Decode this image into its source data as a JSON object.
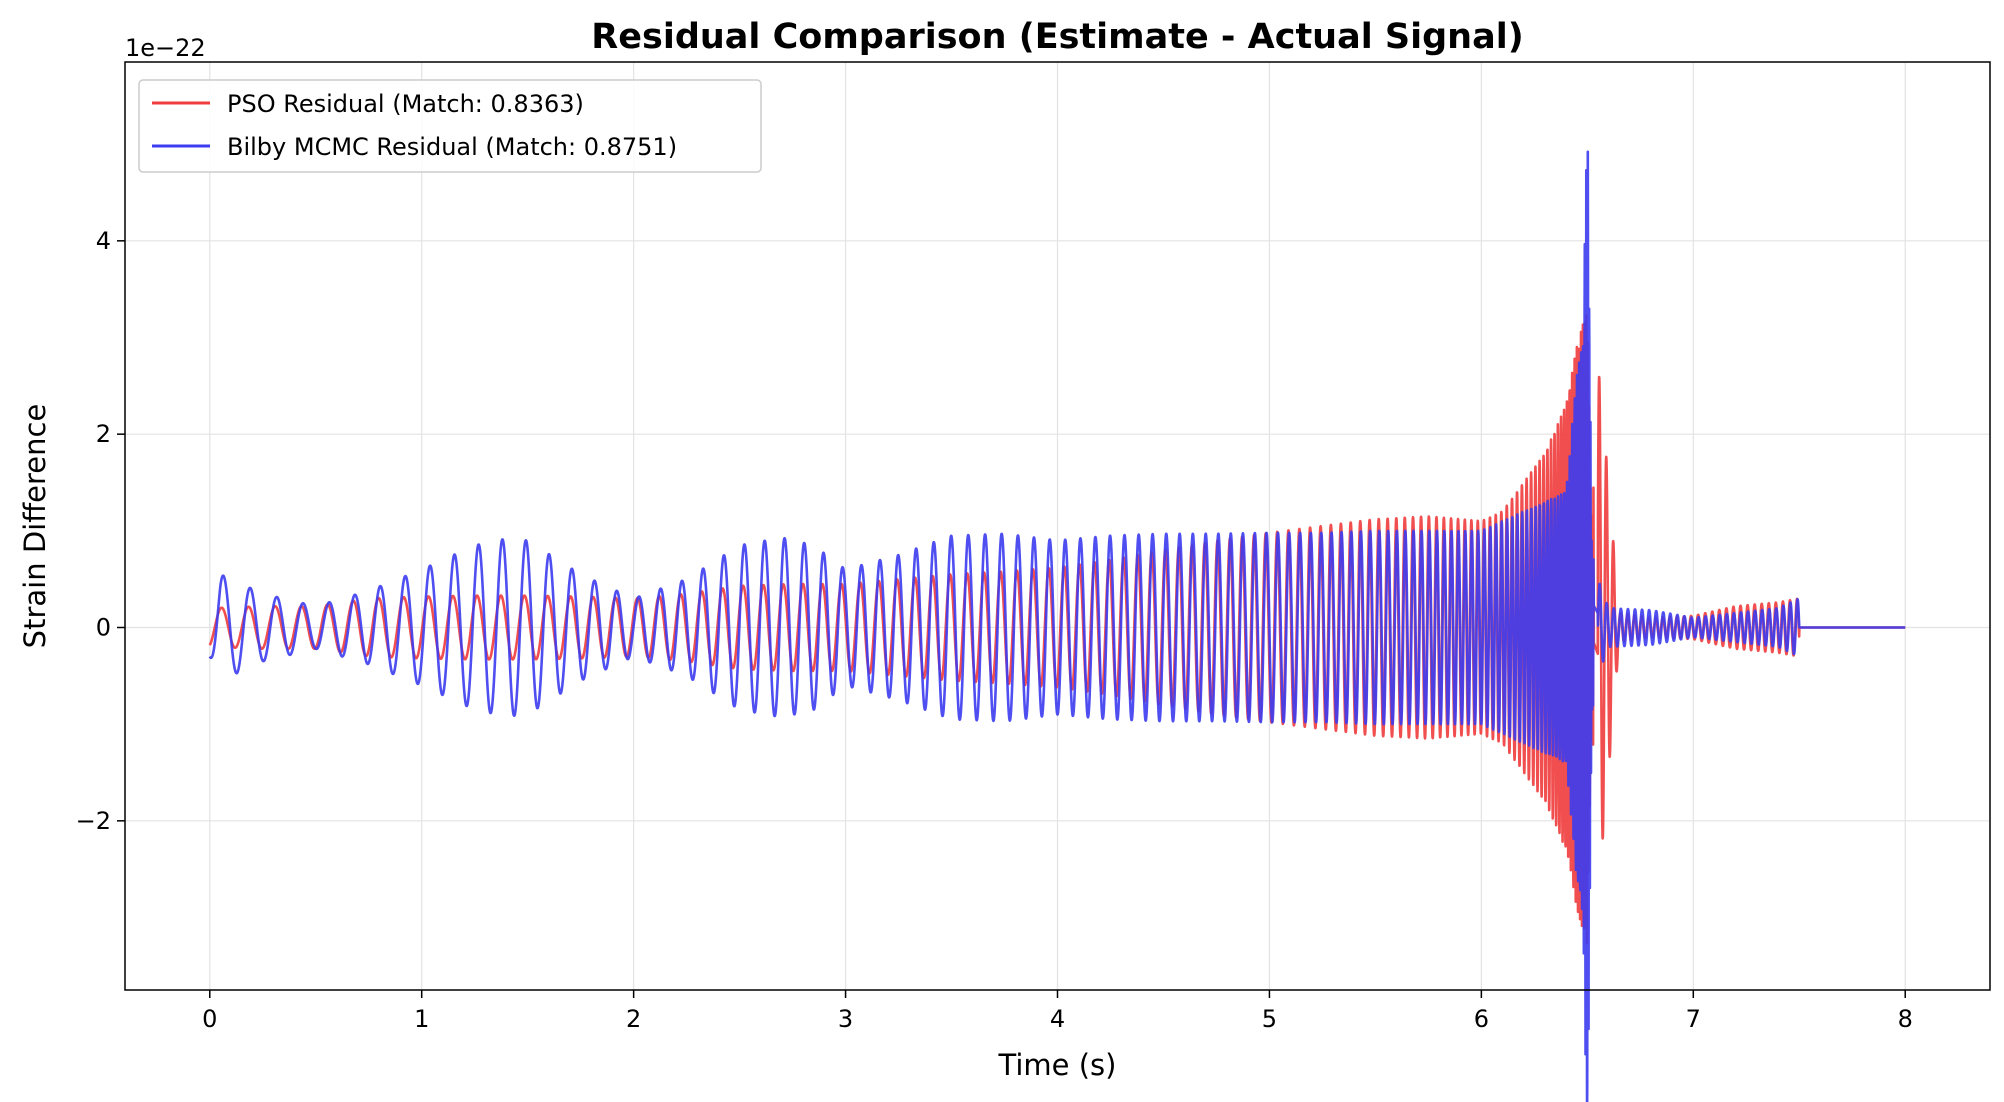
{
  "chart_data": {
    "type": "line",
    "title": "Residual Comparison (Estimate - Actual Signal)",
    "xlabel": "Time (s)",
    "ylabel": "Strain Difference",
    "y_offset_label": "1e−22",
    "xlim": [
      -0.4,
      8.4
    ],
    "ylim": [
      -3.75,
      5.85
    ],
    "x_ticks": [
      0,
      1,
      2,
      3,
      4,
      5,
      6,
      7,
      8
    ],
    "x_tick_labels": [
      "0",
      "1",
      "2",
      "3",
      "4",
      "5",
      "6",
      "7",
      "8"
    ],
    "y_ticks": [
      -2,
      0,
      2,
      4
    ],
    "y_tick_labels": [
      "−2",
      "0",
      "2",
      "4"
    ],
    "grid": true,
    "legend_position": "upper-left",
    "series": [
      {
        "name": "PSO Residual (Match: 0.8363)",
        "color": "#f03c3c",
        "x": [
          0,
          0.25,
          0.5,
          0.75,
          1,
          1.25,
          1.5,
          1.75,
          2,
          2.25,
          2.5,
          2.75,
          3,
          3.25,
          3.5,
          3.75,
          4,
          4.25,
          4.5,
          4.75,
          5,
          5.25,
          5.5,
          5.75,
          6,
          6.1,
          6.2,
          6.3,
          6.4,
          6.45,
          6.5,
          6.52,
          6.55,
          6.6,
          6.65,
          6.8,
          7,
          7.2,
          7.4,
          7.5,
          7.51,
          8.0
        ],
        "envelope": [
          0.2,
          0.22,
          0.22,
          0.3,
          0.32,
          0.33,
          0.33,
          0.32,
          0.3,
          0.35,
          0.43,
          0.45,
          0.45,
          0.5,
          0.55,
          0.58,
          0.62,
          0.7,
          0.8,
          0.9,
          0.98,
          1.05,
          1.12,
          1.15,
          1.1,
          1.2,
          1.5,
          1.8,
          2.3,
          2.9,
          3.3,
          0.9,
          2.75,
          1.5,
          0.15,
          0.1,
          0.12,
          0.22,
          0.26,
          0.3,
          0,
          0
        ]
      },
      {
        "name": "Bilby MCMC Residual (Match: 0.8751)",
        "color": "#3c3cf0",
        "x": [
          0,
          0.05,
          0.25,
          0.5,
          0.75,
          1,
          1.25,
          1.4,
          1.5,
          1.75,
          2,
          2.25,
          2.5,
          2.7,
          2.85,
          3,
          3.25,
          3.5,
          3.75,
          4,
          4.25,
          4.5,
          4.75,
          5,
          5.25,
          5.5,
          5.75,
          6,
          6.1,
          6.2,
          6.3,
          6.4,
          6.45,
          6.48,
          6.5,
          6.52,
          6.55,
          6.6,
          6.8,
          7,
          7.2,
          7.4,
          7.5,
          7.51,
          8.0
        ],
        "envelope": [
          0.3,
          0.55,
          0.35,
          0.22,
          0.38,
          0.6,
          0.85,
          0.92,
          0.9,
          0.55,
          0.3,
          0.5,
          0.85,
          0.93,
          0.85,
          0.6,
          0.75,
          0.95,
          0.97,
          0.9,
          0.95,
          0.97,
          0.97,
          0.98,
          0.98,
          1.0,
          1.0,
          1.0,
          1.1,
          1.2,
          1.3,
          1.4,
          2.6,
          3.0,
          5.5,
          0.9,
          0.5,
          0.2,
          0.18,
          0.1,
          0.15,
          0.2,
          0.3,
          0,
          0
        ]
      }
    ]
  }
}
